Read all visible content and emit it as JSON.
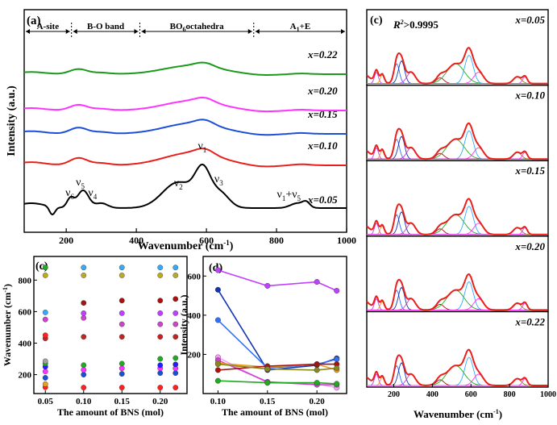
{
  "chart_data": [
    {
      "panel": "(a)",
      "type": "line",
      "xlabel": "Wavenumber",
      "xlabel_unit": "(cm",
      "xlabel_sup": "-1",
      "xlabel_close": ")",
      "ylabel": "Intensity (a.u.)",
      "xlim": [
        80,
        1000
      ],
      "xticks": [
        200,
        400,
        600,
        800,
        1000
      ],
      "regions": [
        {
          "label": "A-site",
          "from": 80,
          "to": 215
        },
        {
          "label": "B-O band",
          "from": 215,
          "to": 410
        },
        {
          "label": "BO",
          "sub": "6",
          "rest": "octahedra",
          "from": 410,
          "to": 735
        },
        {
          "label": "A",
          "sub": "1",
          "rest": "+E",
          "from": 735,
          "to": 1000
        }
      ],
      "series": [
        {
          "name": "x=0.05",
          "color": "#000000",
          "offset": 0
        },
        {
          "name": "x=0.10",
          "color": "#e8201b",
          "offset": 1
        },
        {
          "name": "x=0.15",
          "color": "#1d4fd6",
          "offset": 2
        },
        {
          "name": "x=0.20",
          "color": "#ff33ff",
          "offset": 3
        },
        {
          "name": "x=0.22",
          "color": "#1a9a1a",
          "offset": 4
        }
      ],
      "peak_labels": [
        {
          "text": "ν",
          "sub": "6",
          "x": 210
        },
        {
          "text": "ν",
          "sub": "5",
          "x": 240
        },
        {
          "text": "ν",
          "sub": "4",
          "x": 275
        },
        {
          "text": "ν",
          "sub": "2",
          "x": 520
        },
        {
          "text": "ν",
          "sub": "1",
          "x": 588
        },
        {
          "text": "ν",
          "sub": "3",
          "x": 635
        },
        {
          "text": "ν",
          "sub": "1",
          "rest": "+ν",
          "sub2": "5",
          "x": 835
        }
      ]
    },
    {
      "panel": "(c)",
      "type": "scatter",
      "xlabel": "The amount of BNS (mol)",
      "ylabel": "Wavenumber",
      "ylabel_unit": "(cm",
      "ylabel_sup": "-1",
      "ylabel_close": ")",
      "xlim": [
        0.035,
        0.235
      ],
      "ylim": [
        80,
        950
      ],
      "xticks": [
        "0.05",
        "0.10",
        "0.15",
        "0.20"
      ],
      "xtick_values": [
        0.05,
        0.1,
        0.15,
        0.2
      ],
      "yticks": [
        200,
        400,
        600,
        800
      ],
      "x": [
        0.05,
        0.1,
        0.15,
        0.2,
        0.22
      ],
      "series": [
        {
          "color": "#ff2020",
          "values": [
            120,
            118,
            118,
            118,
            118
          ]
        },
        {
          "color": "#e8a020",
          "values": [
            140,
            null,
            null,
            null,
            null
          ]
        },
        {
          "color": "#1d4fd6",
          "values": [
            180,
            200,
            205,
            210,
            210
          ]
        },
        {
          "color": "#ff33ff",
          "values": [
            220,
            230,
            240,
            240,
            240
          ]
        },
        {
          "color": "#2020ff",
          "values": [
            250,
            null,
            null,
            260,
            265
          ]
        },
        {
          "color": "#22aa22",
          "values": [
            270,
            260,
            270,
            300,
            305
          ]
        },
        {
          "color": "#a0a0a0",
          "values": [
            285,
            null,
            null,
            null,
            null
          ]
        },
        {
          "color": "#cc2020",
          "values": [
            430,
            440,
            440,
            440,
            440
          ]
        },
        {
          "color": "#ff2020",
          "values": [
            450,
            null,
            null,
            null,
            null
          ]
        },
        {
          "color": "#cc44cc",
          "values": [
            550,
            560,
            520,
            520,
            520
          ]
        },
        {
          "color": "#c040ff",
          "values": [
            null,
            590,
            590,
            590,
            590
          ]
        },
        {
          "color": "#33aaff",
          "values": [
            595,
            null,
            null,
            null,
            null
          ]
        },
        {
          "color": "#aa1111",
          "values": [
            null,
            655,
            670,
            670,
            680
          ]
        },
        {
          "color": "#bbaa22",
          "values": [
            830,
            830,
            830,
            830,
            830
          ]
        },
        {
          "color": "#22aa22",
          "values": [
            880,
            null,
            null,
            null,
            null
          ]
        },
        {
          "color": "#33aaff",
          "values": [
            null,
            880,
            880,
            880,
            880
          ]
        }
      ]
    },
    {
      "panel": "(d)",
      "type": "line",
      "xlabel": "The amount of BNS (mol)",
      "ylabel": "Intensity (a.u.)",
      "xlim": [
        0.085,
        0.23
      ],
      "ylim": [
        0,
        700
      ],
      "xticks": [
        "0.10",
        "0.15",
        "0.20"
      ],
      "xtick_values": [
        0.1,
        0.15,
        0.2
      ],
      "yticks": [
        200,
        400,
        600
      ],
      "x": [
        0.1,
        0.15,
        0.2,
        0.22
      ],
      "series": [
        {
          "color": "#c040ff",
          "values": [
            630,
            550,
            570,
            525
          ]
        },
        {
          "color": "#1535b0",
          "values": [
            530,
            120,
            145,
            180
          ]
        },
        {
          "color": "#3070ff",
          "values": [
            375,
            130,
            150,
            175
          ]
        },
        {
          "color": "#ff99ff",
          "values": [
            185,
            55,
            50,
            30
          ]
        },
        {
          "color": "#cc44cc",
          "values": [
            170,
            60,
            45,
            45
          ]
        },
        {
          "color": "#e8a020",
          "values": [
            155,
            135,
            150,
            120
          ]
        },
        {
          "color": "#aa1111",
          "values": [
            120,
            140,
            150,
            150
          ]
        },
        {
          "color": "#888822",
          "values": [
            150,
            125,
            120,
            130
          ]
        },
        {
          "color": "#22aa22",
          "values": [
            65,
            55,
            55,
            50
          ]
        }
      ]
    },
    {
      "panel": "(c)",
      "type": "line",
      "xlabel": "Wavenumber",
      "xlabel_unit": "(cm",
      "xlabel_sup": "-1",
      "xlabel_close": ")",
      "xlim": [
        60,
        1000
      ],
      "xticks": [
        200,
        400,
        600,
        800,
        1000
      ],
      "fit_label": "R",
      "fit_sup": "2",
      "fit_rest": ">0.9995",
      "subpanels": [
        "x=0.05",
        "x=0.10",
        "x=0.15",
        "x=0.20",
        "x=0.22"
      ],
      "fit_color": "#e8201b"
    }
  ]
}
